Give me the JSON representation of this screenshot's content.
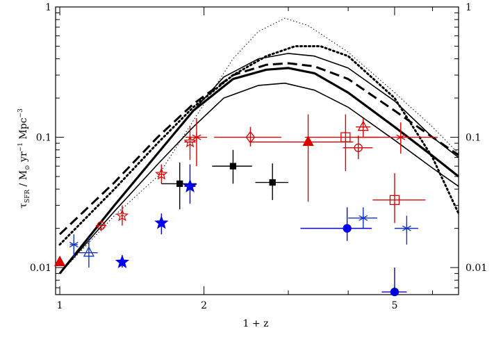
{
  "chart_data": {
    "type": "scatter",
    "x_scale": "log",
    "y_scale": "log",
    "xlabel": "1 + z",
    "ylabel_parts": {
      "tau": "τ",
      "sub": "SFR",
      "rest": " / M",
      "sun": "⊙",
      "rest2": " yr",
      "exp1": "−1",
      "rest3": " Mpc",
      "exp2": "−3"
    },
    "xlim": [
      0.98,
      6.8
    ],
    "ylim": [
      0.0062,
      1.0
    ],
    "x_ticks": [
      {
        "value": 1,
        "label": "1"
      },
      {
        "value": 2,
        "label": "2"
      },
      {
        "value": 5,
        "label": "5"
      }
    ],
    "y_ticks_left": [
      {
        "value": 0.01,
        "label": "0.01"
      },
      {
        "value": 0.1,
        "label": "0.1"
      },
      {
        "value": 1,
        "label": "1"
      }
    ],
    "y_ticks_right": [
      {
        "value": 0.01,
        "label": "0.01"
      },
      {
        "value": 0.1,
        "label": "0.1"
      },
      {
        "value": 1,
        "label": "1"
      }
    ],
    "curves": [
      {
        "style": "dotted-thin",
        "points": [
          [
            1.0,
            0.009
          ],
          [
            1.3,
            0.025
          ],
          [
            1.6,
            0.05
          ],
          [
            2.0,
            0.18
          ],
          [
            2.3,
            0.4
          ],
          [
            2.6,
            0.65
          ],
          [
            2.95,
            0.82
          ],
          [
            3.3,
            0.72
          ],
          [
            4.0,
            0.45
          ],
          [
            5.0,
            0.22
          ],
          [
            6.0,
            0.12
          ],
          [
            6.8,
            0.075
          ]
        ]
      },
      {
        "style": "thin-solid",
        "points": [
          [
            1.0,
            0.009
          ],
          [
            1.3,
            0.03
          ],
          [
            1.6,
            0.075
          ],
          [
            1.9,
            0.16
          ],
          [
            2.2,
            0.29
          ],
          [
            2.6,
            0.4
          ],
          [
            3.0,
            0.44
          ],
          [
            3.4,
            0.42
          ],
          [
            4.0,
            0.34
          ],
          [
            5.0,
            0.19
          ],
          [
            6.0,
            0.1
          ],
          [
            6.8,
            0.07
          ]
        ]
      },
      {
        "style": "thin-solid",
        "points": [
          [
            1.0,
            0.009
          ],
          [
            1.3,
            0.027
          ],
          [
            1.6,
            0.062
          ],
          [
            1.9,
            0.12
          ],
          [
            2.2,
            0.2
          ],
          [
            2.6,
            0.25
          ],
          [
            2.95,
            0.26
          ],
          [
            3.4,
            0.23
          ],
          [
            4.0,
            0.17
          ],
          [
            5.0,
            0.095
          ],
          [
            6.0,
            0.058
          ],
          [
            6.8,
            0.042
          ]
        ]
      },
      {
        "style": "thick-solid",
        "points": [
          [
            1.0,
            0.009
          ],
          [
            1.3,
            0.03
          ],
          [
            1.6,
            0.075
          ],
          [
            1.9,
            0.16
          ],
          [
            2.3,
            0.28
          ],
          [
            2.7,
            0.33
          ],
          [
            3.0,
            0.34
          ],
          [
            3.4,
            0.31
          ],
          [
            4.0,
            0.22
          ],
          [
            5.0,
            0.12
          ],
          [
            6.0,
            0.072
          ],
          [
            6.8,
            0.05
          ]
        ]
      },
      {
        "style": "thick-dashed",
        "points": [
          [
            1.0,
            0.018
          ],
          [
            1.3,
            0.045
          ],
          [
            1.6,
            0.1
          ],
          [
            1.9,
            0.18
          ],
          [
            2.3,
            0.3
          ],
          [
            2.7,
            0.36
          ],
          [
            3.0,
            0.37
          ],
          [
            3.4,
            0.35
          ],
          [
            4.0,
            0.28
          ],
          [
            5.0,
            0.16
          ],
          [
            6.0,
            0.1
          ],
          [
            6.8,
            0.073
          ]
        ]
      },
      {
        "style": "thick-dotted",
        "points": [
          [
            1.0,
            0.015
          ],
          [
            1.3,
            0.04
          ],
          [
            1.6,
            0.09
          ],
          [
            1.9,
            0.17
          ],
          [
            2.3,
            0.3
          ],
          [
            2.7,
            0.42
          ],
          [
            3.1,
            0.5
          ],
          [
            3.5,
            0.5
          ],
          [
            4.0,
            0.42
          ],
          [
            5.0,
            0.2
          ],
          [
            6.0,
            0.07
          ],
          [
            6.8,
            0.026
          ]
        ]
      }
    ],
    "points": [
      {
        "x": 1.0,
        "y": 0.011,
        "marker": "triangle-filled",
        "color": "#dd0000"
      },
      {
        "x": 1.07,
        "y": 0.015,
        "xerr": [
          0.02,
          0.02
        ],
        "yerr": [
          0.003,
          0.003
        ],
        "marker": "asterisk",
        "color": "#1133cc"
      },
      {
        "x": 1.15,
        "y": 0.013,
        "xerr": [
          0.05,
          0.05
        ],
        "yerr": [
          0.003,
          0.004
        ],
        "marker": "triangle-open",
        "color": "#1133cc"
      },
      {
        "x": 1.22,
        "y": 0.021,
        "xerr": [
          0.03,
          0.03
        ],
        "yerr": [
          0.002,
          0.002
        ],
        "marker": "circle-open",
        "color": "#dd0000"
      },
      {
        "x": 1.35,
        "y": 0.025,
        "xerr": [
          0.01,
          0.01
        ],
        "yerr": [
          0.004,
          0.005
        ],
        "marker": "star-open",
        "color": "#dd0000"
      },
      {
        "x": 1.35,
        "y": 0.011,
        "xerr": [
          0.01,
          0.01
        ],
        "yerr": [
          0.001,
          0.0015
        ],
        "marker": "star-filled",
        "color": "#0000ee"
      },
      {
        "x": 1.63,
        "y": 0.052,
        "xerr": [
          0.03,
          0.03
        ],
        "yerr": [
          0.008,
          0.01
        ],
        "marker": "star-open",
        "color": "#dd0000"
      },
      {
        "x": 1.63,
        "y": 0.022,
        "xerr": [
          0.03,
          0.03
        ],
        "yerr": [
          0.004,
          0.004
        ],
        "marker": "star-filled",
        "color": "#0000ee"
      },
      {
        "x": 1.78,
        "y": 0.044,
        "xerr": [
          0.15,
          0.15
        ],
        "yerr": [
          0.016,
          0.02
        ],
        "marker": "square-filled",
        "color": "#000000"
      },
      {
        "x": 1.87,
        "y": 0.042,
        "xerr": [
          0.05,
          0.05
        ],
        "yerr": [
          0.011,
          0.02
        ],
        "marker": "star-filled",
        "color": "#0000ee"
      },
      {
        "x": 1.87,
        "y": 0.092,
        "xerr": [
          0.05,
          0.05
        ],
        "yerr": [
          0.025,
          0.03
        ],
        "marker": "star-open",
        "color": "#dd0000"
      },
      {
        "x": 1.93,
        "y": 0.1,
        "xerr": [
          0.1,
          0.1
        ],
        "yerr": [
          0.04,
          0.04
        ],
        "marker": "asterisk",
        "color": "#dd0000"
      },
      {
        "x": 2.3,
        "y": 0.06,
        "xerr": [
          0.22,
          0.22
        ],
        "yerr": [
          0.016,
          0.02
        ],
        "marker": "square-filled",
        "color": "#000000"
      },
      {
        "x": 2.5,
        "y": 0.1,
        "xerr": [
          0.4,
          0.4
        ],
        "yerr": [
          0.015,
          0.02
        ],
        "marker": "diamond-open",
        "color": "#dd0000"
      },
      {
        "x": 2.78,
        "y": 0.045,
        "xerr": [
          0.22,
          0.22
        ],
        "yerr": [
          0.012,
          0.018
        ],
        "marker": "square-filled",
        "color": "#000000"
      },
      {
        "x": 3.3,
        "y": 0.092,
        "xerr": [
          0.8,
          0.8
        ],
        "yerr": [
          0.06,
          0.058
        ],
        "marker": "triangle-filled",
        "color": "#dd0000"
      },
      {
        "x": 3.95,
        "y": 0.1,
        "xerr": [
          0.7,
          0.7
        ],
        "yerr": [
          0.045,
          0.05
        ],
        "marker": "square-open",
        "color": "#dd0000"
      },
      {
        "x": 3.98,
        "y": 0.02,
        "xerr": [
          0.8,
          0.5
        ],
        "yerr": [
          0.004,
          0.009
        ],
        "marker": "circle-filled",
        "color": "#0000ee"
      },
      {
        "x": 4.2,
        "y": 0.083,
        "xerr": [
          0.3,
          0.3
        ],
        "yerr": [
          0.015,
          0.02
        ],
        "marker": "circle-open",
        "color": "#dd0000"
      },
      {
        "x": 4.3,
        "y": 0.12,
        "xerr": [
          0.15,
          0.15
        ],
        "yerr": [
          0.02,
          0.02
        ],
        "marker": "triangle-open",
        "color": "#dd0000"
      },
      {
        "x": 4.3,
        "y": 0.024,
        "xerr": [
          0.3,
          0.3
        ],
        "yerr": [
          0.004,
          0.005
        ],
        "marker": "asterisk",
        "color": "#1133cc"
      },
      {
        "x": 5.0,
        "y": 0.033,
        "xerr": [
          0.5,
          0.8
        ],
        "yerr": [
          0.011,
          0.02
        ],
        "marker": "square-open",
        "color": "#dd0000"
      },
      {
        "x": 5.0,
        "y": 0.0065,
        "xerr": [
          0.3,
          0.3
        ],
        "yerr": [
          0.0002,
          0.0035
        ],
        "marker": "circle-filled",
        "color": "#0000ee"
      },
      {
        "x": 5.15,
        "y": 0.1,
        "xerr": [
          1.0,
          1.0
        ],
        "yerr": [
          0.025,
          0.03
        ],
        "marker": "asterisk",
        "color": "#dd0000"
      },
      {
        "x": 5.3,
        "y": 0.02,
        "xerr": [
          0.3,
          0.3
        ],
        "yerr": [
          0.005,
          0.005
        ],
        "marker": "asterisk",
        "color": "#1133cc"
      }
    ]
  }
}
